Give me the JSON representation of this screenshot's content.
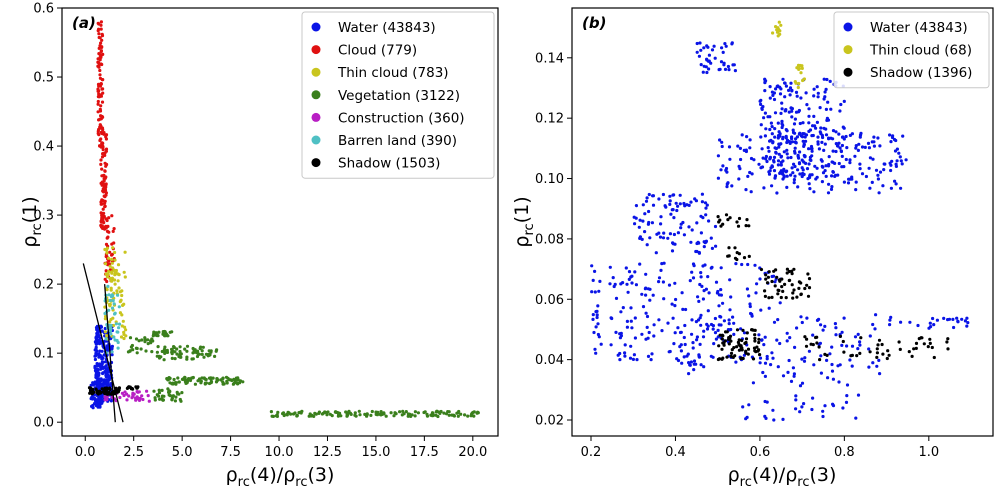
{
  "chart_data": [
    {
      "type": "scatter",
      "panel_label": "(a)",
      "xlabel": "ρrc(4)/ρrc(3)",
      "ylabel": "ρrc(1)",
      "xlim": [
        -1.2,
        21.3
      ],
      "ylim": [
        -0.02,
        0.6
      ],
      "xticks": [
        "0.0",
        "2.5",
        "5.0",
        "7.5",
        "10.0",
        "12.5",
        "15.0",
        "17.5",
        "20.0"
      ],
      "yticks": [
        "0.0",
        "0.1",
        "0.2",
        "0.3",
        "0.4",
        "0.5",
        "0.6"
      ],
      "legend_position": "top-right",
      "series": [
        {
          "name": "Water (43843)",
          "color": "#0a14e6",
          "clusters": [
            [
              0.5,
              1.4,
              0.03,
              0.14,
              260
            ],
            [
              0.3,
              0.9,
              0.02,
              0.06,
              60
            ]
          ]
        },
        {
          "name": "Cloud (779)",
          "color": "#e01010",
          "clusters": [
            [
              0.65,
              0.9,
              0.4,
              0.58,
              90
            ],
            [
              0.8,
              1.1,
              0.28,
              0.42,
              90
            ],
            [
              1.0,
              1.5,
              0.2,
              0.3,
              45
            ]
          ]
        },
        {
          "name": "Thin cloud (783)",
          "color": "#c9c51e",
          "clusters": [
            [
              1.0,
              2.1,
              0.12,
              0.26,
              90
            ]
          ]
        },
        {
          "name": "Vegetation (3122)",
          "color": "#3a7f1c",
          "clusters": [
            [
              3.5,
              4.5,
              0.125,
              0.133,
              25
            ],
            [
              3.7,
              6.8,
              0.09,
              0.11,
              70
            ],
            [
              4.2,
              8.2,
              0.055,
              0.065,
              90
            ],
            [
              3.5,
              5,
              0.03,
              0.05,
              35
            ],
            [
              9.5,
              20.5,
              0.008,
              0.016,
              140
            ],
            [
              2,
              3.5,
              0.1,
              0.125,
              25
            ]
          ]
        },
        {
          "name": "Construction (360)",
          "color": "#b81ec4",
          "clusters": [
            [
              1.0,
              3.5,
              0.03,
              0.045,
              40
            ]
          ]
        },
        {
          "name": "Barren land (390)",
          "color": "#4fc0c4",
          "clusters": [
            [
              1.0,
              1.8,
              0.1,
              0.2,
              40
            ]
          ]
        },
        {
          "name": "Shadow (1503)",
          "color": "#000000",
          "clusters": [
            [
              0.2,
              1.8,
              0.04,
              0.05,
              60
            ],
            [
              2.1,
              2.8,
              0.048,
              0.052,
              12
            ]
          ]
        }
      ],
      "lines": [
        {
          "x": [
            -0.1,
            1.95
          ],
          "y": [
            0.23,
            0.0
          ]
        },
        {
          "x": [
            1.0,
            1.55
          ],
          "y": [
            0.2,
            0.0
          ]
        }
      ]
    },
    {
      "type": "scatter",
      "panel_label": "(b)",
      "xlabel": "ρrc(4)/ρrc(3)",
      "ylabel": "ρrc(1)",
      "xlim": [
        0.155,
        1.152
      ],
      "ylim": [
        0.0147,
        0.1565
      ],
      "xticks": [
        "0.2",
        "0.4",
        "0.6",
        "0.8",
        "1.0"
      ],
      "yticks": [
        "0.02",
        "0.04",
        "0.06",
        "0.08",
        "0.10",
        "0.12",
        "0.14"
      ],
      "legend_position": "top-right",
      "series": [
        {
          "name": "Water (43843)",
          "color": "#0a14e6",
          "clusters": [
            [
              0.45,
              0.55,
              0.135,
              0.145,
              40
            ],
            [
              0.6,
              0.8,
              0.1,
              0.133,
              260
            ],
            [
              0.5,
              0.95,
              0.095,
              0.115,
              200
            ],
            [
              0.3,
              0.5,
              0.075,
              0.095,
              100
            ],
            [
              0.2,
              0.65,
              0.04,
              0.072,
              220
            ],
            [
              0.4,
              0.9,
              0.035,
              0.055,
              120
            ],
            [
              0.9,
              1.1,
              0.05,
              0.054,
              25
            ],
            [
              0.55,
              0.85,
              0.02,
              0.035,
              40
            ]
          ]
        },
        {
          "name": "Thin cloud (68)",
          "color": "#c9c51e",
          "clusters": [
            [
              0.63,
              0.65,
              0.147,
              0.152,
              12
            ],
            [
              0.68,
              0.71,
              0.13,
              0.14,
              14
            ]
          ]
        },
        {
          "name": "Shadow (1396)",
          "color": "#000000",
          "clusters": [
            [
              0.5,
              0.58,
              0.084,
              0.088,
              14
            ],
            [
              0.52,
              0.58,
              0.073,
              0.078,
              10
            ],
            [
              0.6,
              0.72,
              0.06,
              0.07,
              50
            ],
            [
              0.5,
              0.6,
              0.04,
              0.05,
              70
            ],
            [
              0.68,
              1.05,
              0.04,
              0.048,
              50
            ]
          ]
        }
      ]
    }
  ]
}
